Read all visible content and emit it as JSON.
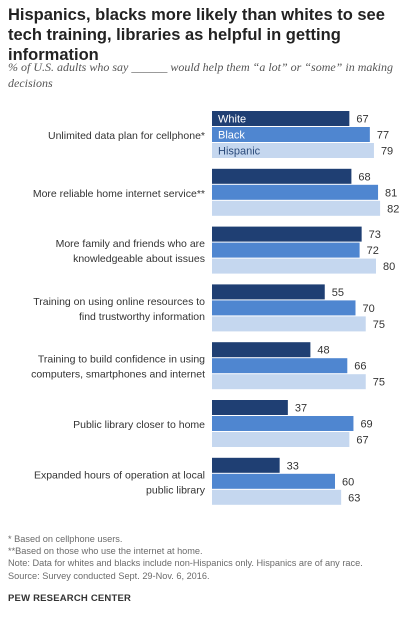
{
  "title": "Hispanics, blacks more likely than whites to see tech training, libraries as helpful in getting information",
  "subtitle": "% of U.S. adults who say ______ would help them “a lot” or “some” in making decisions",
  "chart_data": {
    "type": "bar",
    "orientation": "horizontal",
    "categories": [
      [
        "Unlimited data plan for cellphone*"
      ],
      [
        "More reliable home internet service**"
      ],
      [
        "More family and friends who are",
        "knowledgeable about issues"
      ],
      [
        "Training on using online resources to",
        "find trustworthy information"
      ],
      [
        "Training to build confidence in using",
        "computers, smartphones and internet"
      ],
      [
        "Public library closer to home"
      ],
      [
        "Expanded hours of operation at local",
        "public library"
      ]
    ],
    "series": [
      {
        "name": "White",
        "color": "#1f3f73",
        "values": [
          67,
          68,
          73,
          55,
          48,
          37,
          33
        ]
      },
      {
        "name": "Black",
        "color": "#4f86d0",
        "values": [
          77,
          81,
          72,
          70,
          66,
          69,
          60
        ]
      },
      {
        "name": "Hispanic",
        "color": "#c5d7ef",
        "values": [
          79,
          82,
          80,
          75,
          75,
          67,
          63
        ]
      }
    ],
    "xlim": [
      0,
      100
    ],
    "legend": "inside-first-group"
  },
  "notes": [
    "* Based on cellphone users.",
    "**Based on those who use the internet at home.",
    "Note: Data for whites and blacks include non-Hispanics only. Hispanics are of any race.",
    "Source: Survey conducted Sept. 29-Nov. 6, 2016."
  ],
  "source_org": "PEW RESEARCH CENTER"
}
